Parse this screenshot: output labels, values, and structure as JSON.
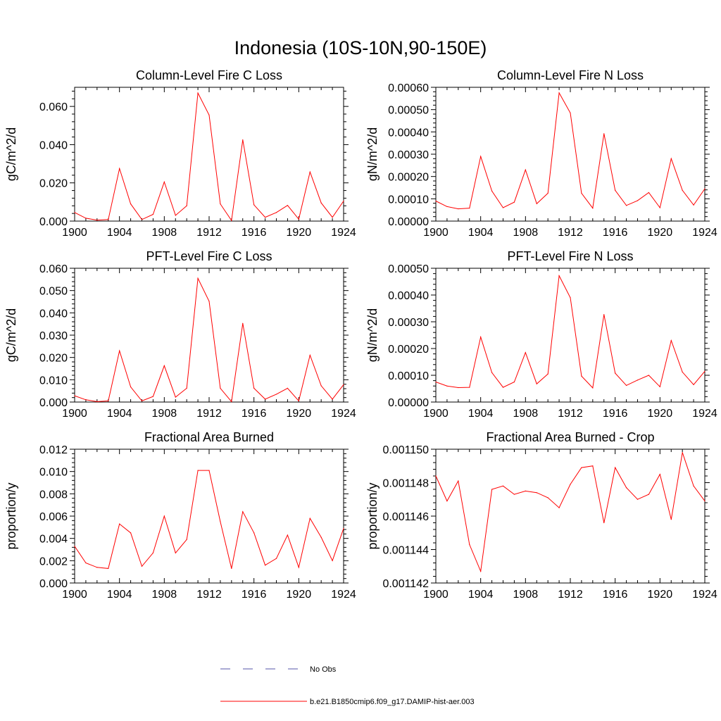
{
  "figure": {
    "title": "Indonesia (10S-10N,90-150E)"
  },
  "legend": {
    "entries": [
      {
        "label": "No Obs",
        "color": "#5555aa",
        "style": "dashed"
      },
      {
        "label": "b.e21.B1850cmip6.f09_g17.DAMIP-hist-aer.003",
        "color": "#ff0000",
        "style": "solid"
      }
    ]
  },
  "chart_data": [
    {
      "type": "line",
      "title": "Column-Level Fire C Loss",
      "ylabel": "gC/m^2/d",
      "xlim": [
        1900,
        1924
      ],
      "ylim": [
        0,
        0.07
      ],
      "xticks": [
        "1900",
        "1904",
        "1908",
        "1912",
        "1916",
        "1920",
        "1924"
      ],
      "yticks": [
        "0.000",
        "0.020",
        "0.040",
        "0.060"
      ],
      "ytick_values": [
        0,
        0.02,
        0.04,
        0.06
      ],
      "x": [
        1900,
        1901,
        1902,
        1903,
        1904,
        1905,
        1906,
        1907,
        1908,
        1909,
        1910,
        1911,
        1912,
        1913,
        1914,
        1915,
        1916,
        1917,
        1918,
        1919,
        1920,
        1921,
        1922,
        1923,
        1924
      ],
      "series": [
        {
          "color": "#ff0000",
          "values": [
            0.0045,
            0.0015,
            0.0005,
            0.0008,
            0.0275,
            0.009,
            0.0008,
            0.0035,
            0.0205,
            0.003,
            0.008,
            0.067,
            0.0555,
            0.009,
            0.0003,
            0.0425,
            0.0085,
            0.002,
            0.0045,
            0.0082,
            0.001,
            0.0257,
            0.0095,
            0.002,
            0.0105
          ]
        }
      ]
    },
    {
      "type": "line",
      "title": "Column-Level Fire N Loss",
      "ylabel": "gN/m^2/d",
      "xlim": [
        1900,
        1924
      ],
      "ylim": [
        0,
        0.0006
      ],
      "xticks": [
        "1900",
        "1904",
        "1908",
        "1912",
        "1916",
        "1920",
        "1924"
      ],
      "yticks": [
        "0.00000",
        "0.00010",
        "0.00020",
        "0.00030",
        "0.00040",
        "0.00050",
        "0.00060"
      ],
      "ytick_values": [
        0,
        0.0001,
        0.0002,
        0.0003,
        0.0004,
        0.0005,
        0.0006
      ],
      "x": [
        1900,
        1901,
        1902,
        1903,
        1904,
        1905,
        1906,
        1907,
        1908,
        1909,
        1910,
        1911,
        1912,
        1913,
        1914,
        1915,
        1916,
        1917,
        1918,
        1919,
        1920,
        1921,
        1922,
        1923,
        1924
      ],
      "series": [
        {
          "color": "#ff0000",
          "values": [
            9e-05,
            6.5e-05,
            5.5e-05,
            5.8e-05,
            0.00029,
            0.000135,
            6e-05,
            8.5e-05,
            0.00023,
            7.8e-05,
            0.000125,
            0.000575,
            0.000485,
            0.000125,
            5.8e-05,
            0.000392,
            0.000138,
            7e-05,
            9.2e-05,
            0.000128,
            6e-05,
            0.00028,
            0.000138,
            7.2e-05,
            0.000145
          ]
        }
      ]
    },
    {
      "type": "line",
      "title": "PFT-Level Fire C Loss",
      "ylabel": "gC/m^2/d",
      "xlim": [
        1900,
        1924
      ],
      "ylim": [
        0,
        0.06
      ],
      "xticks": [
        "1900",
        "1904",
        "1908",
        "1912",
        "1916",
        "1920",
        "1924"
      ],
      "yticks": [
        "0.000",
        "0.010",
        "0.020",
        "0.030",
        "0.040",
        "0.050",
        "0.060"
      ],
      "ytick_values": [
        0,
        0.01,
        0.02,
        0.03,
        0.04,
        0.05,
        0.06
      ],
      "x": [
        1900,
        1901,
        1902,
        1903,
        1904,
        1905,
        1906,
        1907,
        1908,
        1909,
        1910,
        1911,
        1912,
        1913,
        1914,
        1915,
        1916,
        1917,
        1918,
        1919,
        1920,
        1921,
        1922,
        1923,
        1924
      ],
      "series": [
        {
          "color": "#ff0000",
          "values": [
            0.0028,
            0.001,
            0.0002,
            0.0005,
            0.023,
            0.0068,
            0.0005,
            0.0025,
            0.0163,
            0.0022,
            0.0062,
            0.0555,
            0.0452,
            0.0062,
            0.0002,
            0.0353,
            0.0062,
            0.0013,
            0.0035,
            0.0062,
            0.0005,
            0.021,
            0.0073,
            0.0013,
            0.0078
          ]
        }
      ]
    },
    {
      "type": "line",
      "title": "PFT-Level Fire N Loss",
      "ylabel": "gN/m^2/d",
      "xlim": [
        1900,
        1924
      ],
      "ylim": [
        0,
        0.0005
      ],
      "xticks": [
        "1900",
        "1904",
        "1908",
        "1912",
        "1916",
        "1920",
        "1924"
      ],
      "yticks": [
        "0.00000",
        "0.00010",
        "0.00020",
        "0.00030",
        "0.00040",
        "0.00050"
      ],
      "ytick_values": [
        0,
        0.0001,
        0.0002,
        0.0003,
        0.0004,
        0.0005
      ],
      "x": [
        1900,
        1901,
        1902,
        1903,
        1904,
        1905,
        1906,
        1907,
        1908,
        1909,
        1910,
        1911,
        1912,
        1913,
        1914,
        1915,
        1916,
        1917,
        1918,
        1919,
        1920,
        1921,
        1922,
        1923,
        1924
      ],
      "series": [
        {
          "color": "#ff0000",
          "values": [
            7.5e-05,
            6e-05,
            5.4e-05,
            5.5e-05,
            0.000243,
            0.00011,
            5.5e-05,
            7.5e-05,
            0.000185,
            6.8e-05,
            0.000105,
            0.000472,
            0.00039,
            9.7e-05,
            5.3e-05,
            0.000327,
            0.000108,
            6.2e-05,
            8.2e-05,
            0.0001,
            5.7e-05,
            0.00023,
            0.000112,
            6.5e-05,
            0.000115
          ]
        }
      ]
    },
    {
      "type": "line",
      "title": "Fractional Area Burned",
      "ylabel": "proportion/y",
      "xlim": [
        1900,
        1924
      ],
      "ylim": [
        0,
        0.012
      ],
      "xticks": [
        "1900",
        "1904",
        "1908",
        "1912",
        "1916",
        "1920",
        "1924"
      ],
      "yticks": [
        "0.000",
        "0.002",
        "0.004",
        "0.006",
        "0.008",
        "0.010",
        "0.012"
      ],
      "ytick_values": [
        0,
        0.002,
        0.004,
        0.006,
        0.008,
        0.01,
        0.012
      ],
      "x": [
        1900,
        1901,
        1902,
        1903,
        1904,
        1905,
        1906,
        1907,
        1908,
        1909,
        1910,
        1911,
        1912,
        1913,
        1914,
        1915,
        1916,
        1917,
        1918,
        1919,
        1920,
        1921,
        1922,
        1923,
        1924
      ],
      "series": [
        {
          "color": "#ff0000",
          "values": [
            0.0033,
            0.0018,
            0.0014,
            0.0013,
            0.0053,
            0.0045,
            0.0015,
            0.0027,
            0.006,
            0.0027,
            0.0039,
            0.0101,
            0.0101,
            0.0055,
            0.0013,
            0.0064,
            0.0045,
            0.0016,
            0.0022,
            0.0043,
            0.0014,
            0.0058,
            0.0041,
            0.002,
            0.0049
          ]
        }
      ]
    },
    {
      "type": "line",
      "title": "Fractional Area Burned - Crop",
      "ylabel": "proportion/y",
      "xlim": [
        1900,
        1924
      ],
      "ylim": [
        0.001142,
        0.00115
      ],
      "xticks": [
        "1900",
        "1904",
        "1908",
        "1912",
        "1916",
        "1920",
        "1924"
      ],
      "yticks": [
        "0.001142",
        "0.001144",
        "0.001146",
        "0.001148",
        "0.001150"
      ],
      "ytick_values": [
        0.001142,
        0.001144,
        0.001146,
        0.001148,
        0.00115
      ],
      "x": [
        1900,
        1901,
        1902,
        1903,
        1904,
        1905,
        1906,
        1907,
        1908,
        1909,
        1910,
        1911,
        1912,
        1913,
        1914,
        1915,
        1916,
        1917,
        1918,
        1919,
        1920,
        1921,
        1922,
        1923,
        1924
      ],
      "series": [
        {
          "color": "#ff0000",
          "values": [
            0.0011484,
            0.0011469,
            0.0011481,
            0.0011443,
            0.0011427,
            0.0011476,
            0.0011478,
            0.0011473,
            0.0011475,
            0.0011474,
            0.0011471,
            0.0011465,
            0.0011479,
            0.0011489,
            0.001149,
            0.0011456,
            0.0011489,
            0.0011477,
            0.001147,
            0.0011473,
            0.0011485,
            0.0011458,
            0.0011498,
            0.0011478,
            0.0011469
          ]
        }
      ]
    }
  ]
}
